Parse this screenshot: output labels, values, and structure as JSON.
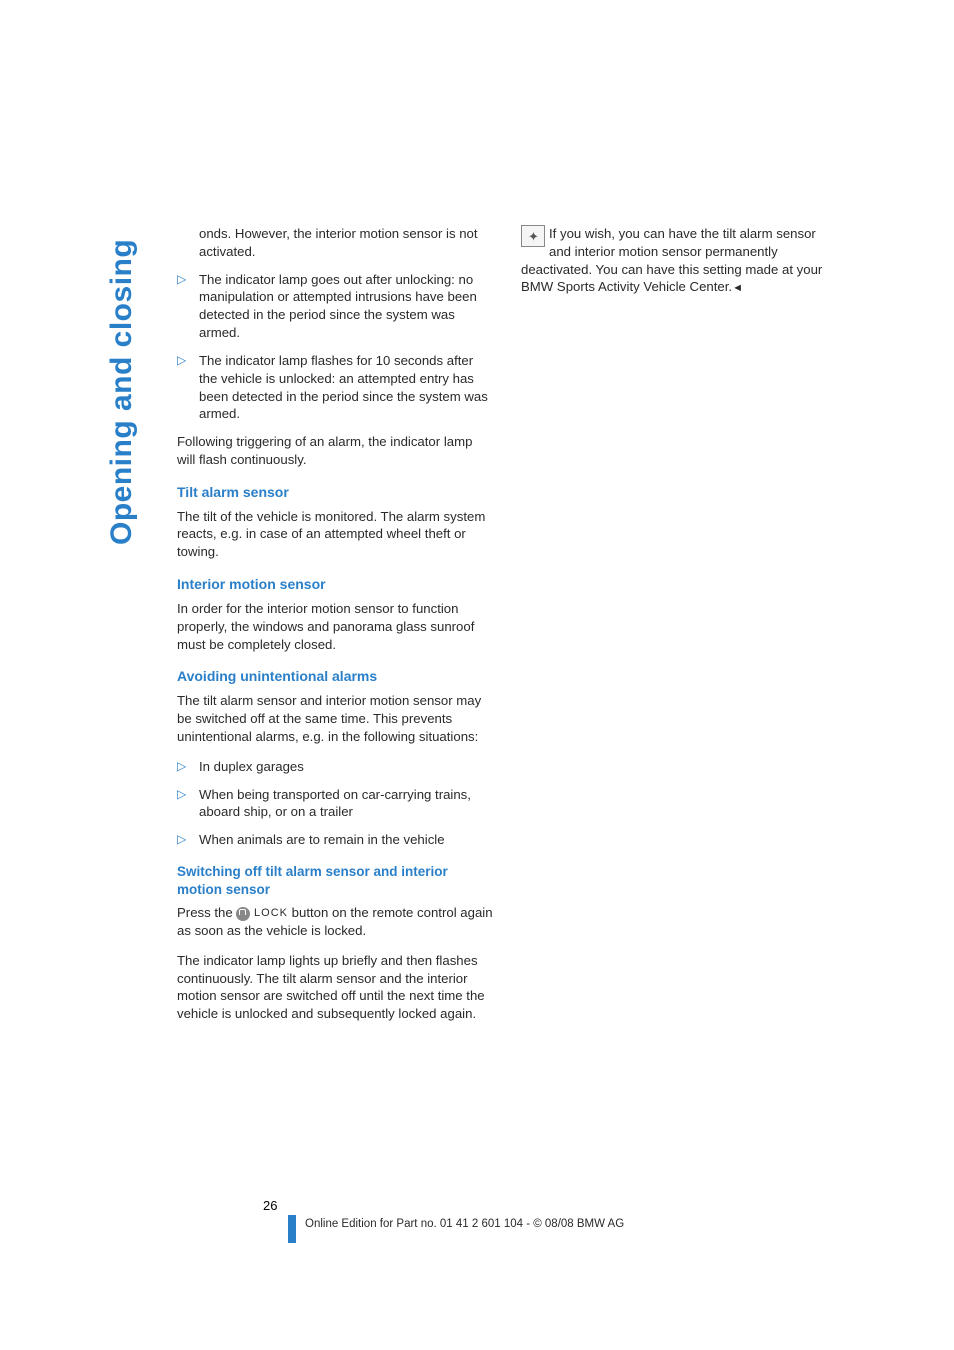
{
  "side_tab": "Opening and closing",
  "col1": {
    "cont_text": "onds. However, the interior motion sensor is not activated.",
    "bullets_a": [
      "The indicator lamp goes out after unlocking: no manipulation or attempted intrusions have been detected in the period since the system was armed.",
      "The indicator lamp flashes for 10 seconds after the vehicle is unlocked: an attempted entry has been detected in the period since the system was armed."
    ],
    "after_bullets_a": "Following triggering of an alarm, the indicator lamp will flash continuously.",
    "h1": "Tilt alarm sensor",
    "p1": "The tilt of the vehicle is monitored. The alarm system reacts, e.g. in case of an attempted wheel theft or towing.",
    "h2": "Interior motion sensor",
    "p2": "In order for the interior motion sensor to function properly, the windows and panorama glass sunroof must be completely closed.",
    "h3": "Avoiding unintentional alarms",
    "p3": "The tilt alarm sensor and interior motion sensor may be switched off at the same time. This prevents unintentional alarms, e.g. in the following situations:",
    "bullets_b": [
      "In duplex garages",
      "When being transported on car-carrying trains, aboard ship, or on a trailer",
      "When animals are to remain in the vehicle"
    ],
    "h4": "Switching off tilt alarm sensor and interior motion sensor",
    "p4_pre": "Press the ",
    "p4_lock": "LOCK",
    "p4_post": " button on the remote control again as soon as the vehicle is locked.",
    "p5": "The indicator lamp lights up briefly and then flashes continuously. The tilt alarm sensor and the interior motion sensor are switched off until the next time the vehicle is unlocked and subsequently locked again."
  },
  "col2": {
    "note": "If you wish, you can have the tilt alarm sensor and interior motion sensor permanently deactivated. You can have this setting made at your BMW Sports Activity Vehicle Center.",
    "note_end": "◄"
  },
  "footer": {
    "page": "26",
    "line": "Online Edition for Part no. 01 41 2 601 104 - © 08/08 BMW AG"
  },
  "colors": {
    "blue": "#2a7fc9",
    "text": "#2a2a2a",
    "bg": "#ffffff"
  }
}
